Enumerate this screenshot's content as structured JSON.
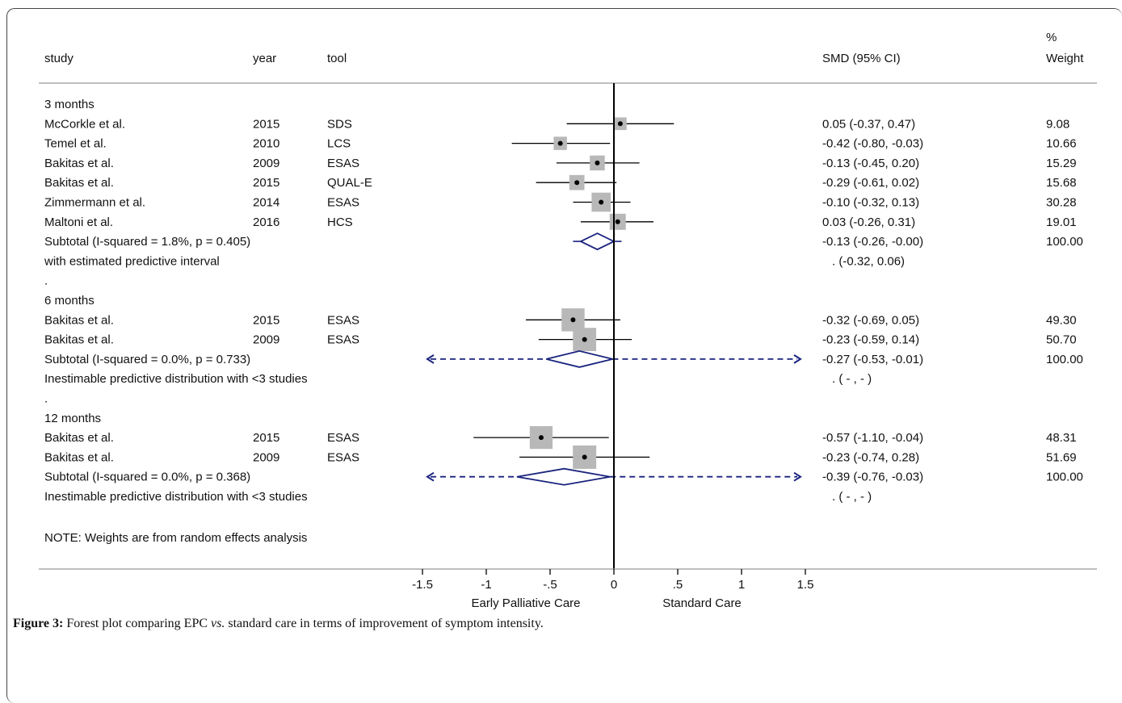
{
  "figure": {
    "caption_label": "Figure 3:",
    "caption_pre": " Forest plot comparing EPC ",
    "caption_vs": "vs.",
    "caption_post": " standard care in terms of improvement of symptom intensity."
  },
  "chart_data": {
    "type": "forest",
    "headers": {
      "study": "study",
      "year": "year",
      "tool": "tool",
      "effect": "SMD (95% CI)",
      "weight_line1": "%",
      "weight_line2": "Weight"
    },
    "xlim": [
      -1.5,
      1.5
    ],
    "ticks": [
      {
        "value": -1.5,
        "label": "-1.5"
      },
      {
        "value": -1.0,
        "label": "-1"
      },
      {
        "value": -0.5,
        "label": "-.5"
      },
      {
        "value": 0.0,
        "label": "0"
      },
      {
        "value": 0.5,
        "label": ".5"
      },
      {
        "value": 1.0,
        "label": "1"
      },
      {
        "value": 1.5,
        "label": "1.5"
      }
    ],
    "favours_left": "Early Palliative Care",
    "favours_right": "Standard Care",
    "rows": [
      {
        "kind": "group",
        "label": "3 months"
      },
      {
        "kind": "study",
        "study": "McCorkle et al.",
        "year": "2015",
        "tool": "SDS",
        "est": 0.05,
        "lo": -0.37,
        "hi": 0.47,
        "ci": "0.05 (-0.37, 0.47)",
        "weight": "9.08",
        "w": 9.08
      },
      {
        "kind": "study",
        "study": "Temel et al.",
        "year": "2010",
        "tool": "LCS",
        "est": -0.42,
        "lo": -0.8,
        "hi": -0.03,
        "ci": "-0.42 (-0.80, -0.03)",
        "weight": "10.66",
        "w": 10.66
      },
      {
        "kind": "study",
        "study": "Bakitas et al.",
        "year": "2009",
        "tool": "ESAS",
        "est": -0.13,
        "lo": -0.45,
        "hi": 0.2,
        "ci": "-0.13 (-0.45, 0.20)",
        "weight": "15.29",
        "w": 15.29
      },
      {
        "kind": "study",
        "study": "Bakitas et al.",
        "year": "2015",
        "tool": "QUAL-E",
        "est": -0.29,
        "lo": -0.61,
        "hi": 0.02,
        "ci": "-0.29 (-0.61, 0.02)",
        "weight": "15.68",
        "w": 15.68
      },
      {
        "kind": "study",
        "study": "Zimmermann et al.",
        "year": "2014",
        "tool": "ESAS",
        "est": -0.1,
        "lo": -0.32,
        "hi": 0.13,
        "ci": "-0.10 (-0.32, 0.13)",
        "weight": "30.28",
        "w": 30.28
      },
      {
        "kind": "study",
        "study": "Maltoni et al.",
        "year": "2016",
        "tool": "HCS",
        "est": 0.03,
        "lo": -0.26,
        "hi": 0.31,
        "ci": "0.03 (-0.26, 0.31)",
        "weight": "19.01",
        "w": 19.01
      },
      {
        "kind": "subtotal",
        "label": "Subtotal  (I-squared = 1.8%, p = 0.405)",
        "est": -0.13,
        "lo": -0.26,
        "hi": 0.0,
        "pi_lo": -0.32,
        "pi_hi": 0.06,
        "pi_dashed": false,
        "ci": "-0.13 (-0.26, -0.00)",
        "weight": "100.00"
      },
      {
        "kind": "note",
        "label": "with estimated predictive interval",
        "ci": ".      (-0.32, 0.06)"
      },
      {
        "kind": "note",
        "label": ".",
        "ci": ""
      },
      {
        "kind": "group",
        "label": "6 months"
      },
      {
        "kind": "study",
        "study": "Bakitas et al.",
        "year": "2015",
        "tool": "ESAS",
        "est": -0.32,
        "lo": -0.69,
        "hi": 0.05,
        "ci": "-0.32 (-0.69, 0.05)",
        "weight": "49.30",
        "w": 49.3
      },
      {
        "kind": "study",
        "study": "Bakitas et al.",
        "year": "2009",
        "tool": "ESAS",
        "est": -0.23,
        "lo": -0.59,
        "hi": 0.14,
        "ci": "-0.23 (-0.59, 0.14)",
        "weight": "50.70",
        "w": 50.7
      },
      {
        "kind": "subtotal",
        "label": "Subtotal  (I-squared = 0.0%, p = 0.733)",
        "est": -0.27,
        "lo": -0.53,
        "hi": -0.01,
        "pi_dashed": true,
        "ci": "-0.27 (-0.53, -0.01)",
        "weight": "100.00"
      },
      {
        "kind": "note",
        "label": "Inestimable predictive distribution with <3 studies",
        "ci": ".      (  -  ,  -  )"
      },
      {
        "kind": "note",
        "label": ".",
        "ci": ""
      },
      {
        "kind": "group",
        "label": "12 months"
      },
      {
        "kind": "study",
        "study": "Bakitas et al.",
        "year": "2015",
        "tool": "ESAS",
        "est": -0.57,
        "lo": -1.1,
        "hi": -0.04,
        "ci": "-0.57 (-1.10, -0.04)",
        "weight": "48.31",
        "w": 48.31
      },
      {
        "kind": "study",
        "study": "Bakitas et al.",
        "year": "2009",
        "tool": "ESAS",
        "est": -0.23,
        "lo": -0.74,
        "hi": 0.28,
        "ci": "-0.23 (-0.74, 0.28)",
        "weight": "51.69",
        "w": 51.69
      },
      {
        "kind": "subtotal",
        "label": "Subtotal  (I-squared = 0.0%, p = 0.368)",
        "est": -0.39,
        "lo": -0.76,
        "hi": -0.03,
        "pi_dashed": true,
        "ci": "-0.39 (-0.76, -0.03)",
        "weight": "100.00"
      },
      {
        "kind": "note",
        "label": "Inestimable predictive distribution with <3 studies",
        "ci": ".      (  -  ,  -  )"
      }
    ],
    "footnote": "NOTE: Weights are from random effects analysis",
    "colors": {
      "text": "#111111",
      "box": "#b8b8b8",
      "diamond": "#1a237e",
      "line": "#000000"
    }
  }
}
